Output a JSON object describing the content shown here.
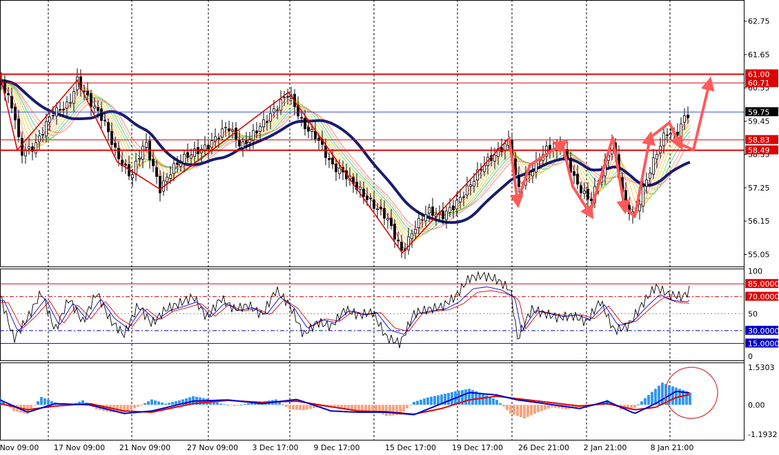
{
  "colors": {
    "background": "#ffffff",
    "bull_candle": "#008000",
    "bear_candle": "#c00000",
    "sma_thick": "#1a1a6e",
    "resistance_line": "#dd0000",
    "price_line": "#3a4fd0",
    "annotation": "#ff5a5a",
    "stoch_k": "#000000",
    "stoch_d": "#0000dd",
    "stoch_slow": "#dd0000",
    "hist_pos": "#3399ee",
    "hist_neg": "#f4a582",
    "macd_line": "#0000cc",
    "signal_line": "#dd0000",
    "circle": "#e05050",
    "grid": "#000000",
    "label_red": "#dd0000",
    "label_blue": "#0000cc",
    "label_current": "#000000"
  },
  "chart_data": [
    {
      "type": "candlestick",
      "panel": "price",
      "y_ticks": [
        "62.75",
        "61.65",
        "60.55",
        "59.45",
        "58.35",
        "57.25",
        "56.15",
        "55.05"
      ],
      "ylim": [
        54.65,
        63.45
      ],
      "x_labels": [
        "Nov 09:00",
        "17 Nov 09:00",
        "21 Nov 09:00",
        "27 Nov 09:00",
        "3 Dec 17:00",
        "9 Dec 17:00",
        "15 Dec 17:00",
        "19 Dec 17:00",
        "26 Dec 21:00",
        "2 Jan 21:00",
        "8 Jan 21:00"
      ],
      "price_path": {
        "x": [
          0,
          20,
          30,
          50,
          75,
          100,
          112,
          130,
          150,
          170,
          190,
          210,
          232,
          250,
          270,
          300,
          330,
          350,
          370,
          390,
          418,
          440,
          460,
          480,
          500,
          520,
          540,
          560,
          583,
          600,
          620,
          640,
          660,
          680,
          700,
          720,
          738,
          750,
          770,
          790,
          815,
          835,
          855,
          870,
          888,
          905,
          920,
          935,
          950,
          965,
          980,
          995,
          1000
        ],
        "y": [
          60.8,
          59.8,
          58.4,
          58.6,
          59.7,
          60.0,
          60.8,
          60.1,
          59.5,
          58.3,
          57.6,
          58.8,
          57.2,
          57.9,
          58.3,
          58.6,
          59.3,
          58.6,
          59.1,
          59.6,
          60.4,
          59.3,
          58.9,
          58.0,
          57.7,
          57.2,
          56.7,
          56.3,
          55.1,
          55.9,
          56.5,
          56.3,
          56.7,
          57.3,
          58.0,
          58.4,
          58.8,
          57.2,
          57.8,
          58.5,
          58.6,
          57.4,
          56.8,
          57.6,
          58.8,
          56.7,
          56.3,
          57.4,
          58.3,
          59.1,
          59.0,
          59.7,
          59.65
        ]
      },
      "horizontal_lines": [
        {
          "value": 61.0,
          "label": "61.00",
          "style": "thick",
          "color": "#dd0000"
        },
        {
          "value": 60.71,
          "label": "60.71",
          "style": "thin",
          "color": "#dd0000"
        },
        {
          "value": 59.75,
          "label": "59.75",
          "style": "current",
          "color": "#3a4fd0"
        },
        {
          "value": 58.83,
          "label": "58.83",
          "style": "thin",
          "color": "#dd0000"
        },
        {
          "value": 58.49,
          "label": "58.49",
          "style": "thick",
          "color": "#dd0000"
        }
      ],
      "zigzag": {
        "x": [
          0,
          25,
          112,
          170,
          232,
          418,
          583,
          738
        ],
        "y": [
          61.0,
          58.5,
          60.8,
          58.1,
          57.2,
          60.4,
          55.1,
          58.9
        ]
      },
      "arrows": [
        {
          "x": [
            738,
            750,
            768,
            815,
            830,
            855,
            888,
            905,
            920,
            942,
            970,
            985,
            1005,
            1028
          ],
          "y": [
            58.9,
            56.8,
            58.0,
            58.7,
            57.3,
            56.4,
            58.9,
            56.6,
            56.3,
            58.9,
            59.4,
            58.7,
            58.5,
            60.7
          ]
        }
      ]
    },
    {
      "type": "line",
      "panel": "stochastic",
      "y_ticks": [
        "100",
        "50",
        "0"
      ],
      "levels": [
        {
          "value": 85,
          "label": "85.0000",
          "color": "#dd0000"
        },
        {
          "value": 70,
          "label": "70.0000",
          "color": "#dd0000"
        },
        {
          "value": 30,
          "label": "30.0000",
          "color": "#0000cc"
        },
        {
          "value": 15,
          "label": "15.0000",
          "color": "#0000cc"
        }
      ],
      "ylim": [
        0,
        100
      ],
      "series": [
        {
          "x": [
            0,
            20,
            40,
            60,
            80,
            100,
            120,
            140,
            160,
            180,
            200,
            220,
            240,
            260,
            280,
            300,
            320,
            340,
            360,
            380,
            400,
            420,
            440,
            460,
            480,
            500,
            520,
            540,
            560,
            580,
            600,
            620,
            640,
            660,
            680,
            700,
            720,
            740,
            750,
            770,
            790,
            810,
            830,
            850,
            870,
            890,
            910,
            930,
            950,
            970,
            990,
            1000
          ],
          "y": [
            72,
            20,
            45,
            75,
            30,
            68,
            40,
            75,
            42,
            25,
            60,
            38,
            55,
            62,
            70,
            45,
            68,
            55,
            60,
            48,
            78,
            60,
            25,
            40,
            35,
            55,
            48,
            52,
            22,
            15,
            50,
            55,
            58,
            70,
            92,
            95,
            90,
            78,
            20,
            55,
            50,
            45,
            48,
            40,
            65,
            30,
            35,
            60,
            82,
            72,
            70,
            78
          ]
        }
      ]
    },
    {
      "type": "bar",
      "panel": "macd",
      "y_ticks": [
        "1.5303",
        "0.00",
        "-1.1932"
      ],
      "ylim": [
        -1.1932,
        1.5303
      ],
      "macd_hist": {
        "x": [
          0,
          20,
          40,
          60,
          80,
          100,
          120,
          140,
          160,
          180,
          200,
          220,
          240,
          260,
          280,
          300,
          320,
          340,
          360,
          380,
          400,
          420,
          440,
          460,
          480,
          500,
          520,
          540,
          560,
          580,
          600,
          620,
          640,
          660,
          680,
          700,
          720,
          740,
          760,
          780,
          800,
          820,
          840,
          860,
          880,
          900,
          920,
          940,
          960,
          980,
          1000
        ],
        "y": [
          0.28,
          -0.25,
          -0.38,
          0.32,
          0.1,
          -0.04,
          0.18,
          -0.18,
          -0.3,
          -0.32,
          -0.08,
          0.22,
          0.05,
          0.18,
          0.35,
          0.25,
          0.05,
          -0.05,
          0.06,
          0.12,
          0.22,
          -0.18,
          -0.22,
          -0.1,
          -0.05,
          -0.2,
          -0.26,
          -0.22,
          -0.45,
          -0.4,
          0.12,
          0.3,
          0.42,
          0.55,
          0.65,
          0.45,
          0.2,
          -0.35,
          -0.55,
          -0.3,
          -0.1,
          -0.18,
          -0.1,
          -0.05,
          0.2,
          -0.2,
          -0.12,
          0.4,
          0.9,
          0.7,
          0.5
        ]
      },
      "macd_line": {
        "x": [
          0,
          40,
          80,
          130,
          180,
          220,
          280,
          330,
          380,
          430,
          480,
          520,
          560,
          600,
          640,
          680,
          720,
          750,
          790,
          840,
          880,
          920,
          950,
          980,
          1000
        ],
        "y": [
          0.2,
          -0.3,
          0.05,
          0.0,
          -0.35,
          -0.25,
          0.15,
          0.2,
          0.05,
          0.22,
          -0.25,
          -0.3,
          -0.3,
          -0.4,
          0.05,
          0.5,
          0.4,
          0.2,
          0.05,
          -0.15,
          0.15,
          -0.35,
          0.05,
          0.55,
          0.48
        ]
      },
      "signal_line": {
        "x": [
          0,
          40,
          80,
          130,
          180,
          220,
          280,
          330,
          380,
          430,
          480,
          520,
          560,
          600,
          640,
          680,
          720,
          750,
          790,
          840,
          880,
          920,
          950,
          980,
          1000
        ],
        "y": [
          0.05,
          -0.2,
          -0.05,
          0.05,
          -0.25,
          -0.3,
          0.05,
          0.18,
          0.1,
          0.15,
          -0.08,
          -0.25,
          -0.28,
          -0.38,
          -0.15,
          0.2,
          0.35,
          0.25,
          0.12,
          -0.05,
          0.05,
          -0.2,
          -0.1,
          0.3,
          0.42
        ]
      }
    }
  ]
}
